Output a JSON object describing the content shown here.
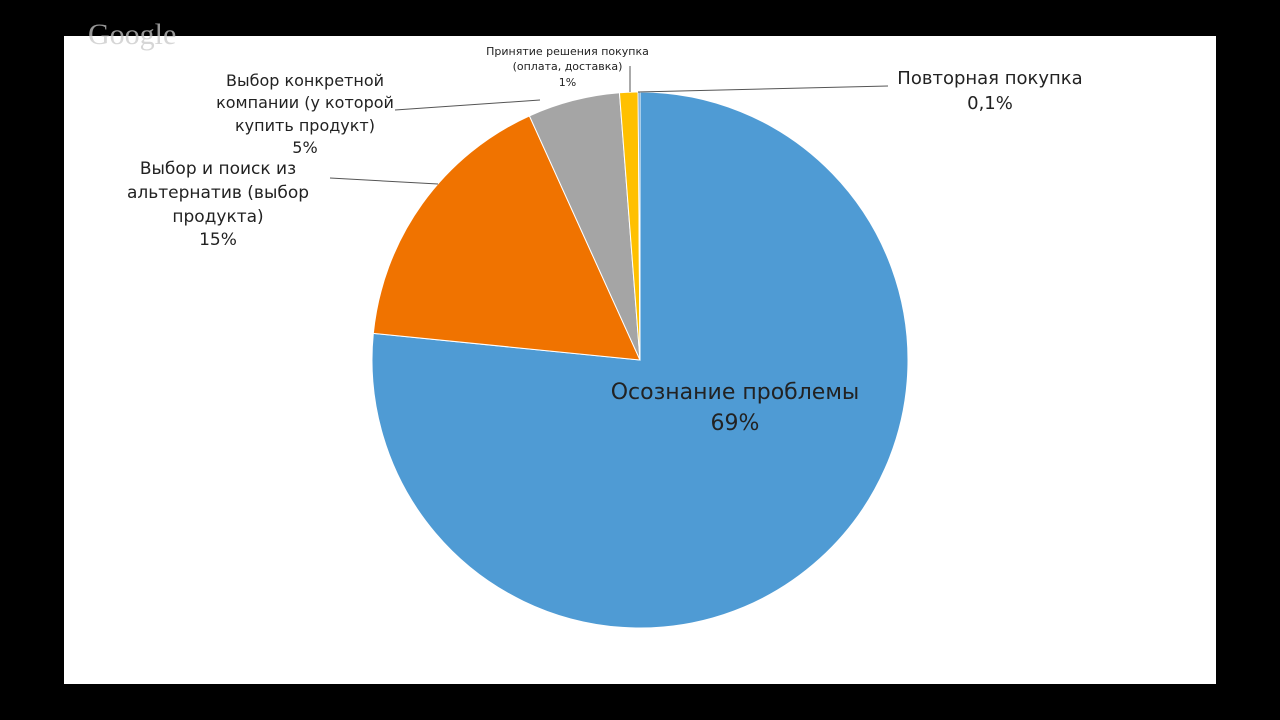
{
  "watermark": "Google",
  "chart_data": {
    "type": "pie",
    "categories": [
      "Осознание проблемы",
      "Выбор и поиск из альтернатив (выбор продукта)",
      "Выбор конкретной компании (у которой купить продукт)",
      "Принятие решения покупка (оплата, доставка)",
      "Повторная покупка"
    ],
    "values": [
      69,
      15,
      5,
      1,
      0.1
    ],
    "value_labels": [
      "69%",
      "15%",
      "5%",
      "1%",
      "0,1%"
    ],
    "colors": [
      "#4f9bd4",
      "#f07300",
      "#a5a5a5",
      "#ffc000",
      "#2f6ea8"
    ]
  }
}
